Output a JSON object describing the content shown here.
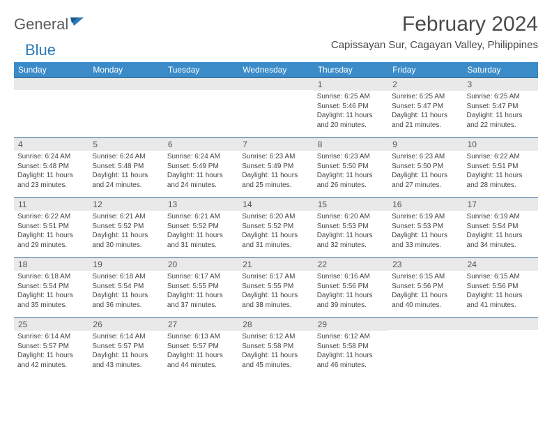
{
  "brand": {
    "text1": "General",
    "text2": "Blue"
  },
  "title": "February 2024",
  "location": "Capissayan Sur, Cagayan Valley, Philippines",
  "colors": {
    "header_bg": "#3b8bc9",
    "header_text": "#ffffff",
    "row_border": "#3b6a93",
    "daynum_bg": "#e9e9e9",
    "text": "#444444",
    "logo_gray": "#5a5a5a",
    "logo_blue": "#2a7ab8"
  },
  "day_names": [
    "Sunday",
    "Monday",
    "Tuesday",
    "Wednesday",
    "Thursday",
    "Friday",
    "Saturday"
  ],
  "weeks": [
    [
      {
        "n": "",
        "lines": []
      },
      {
        "n": "",
        "lines": []
      },
      {
        "n": "",
        "lines": []
      },
      {
        "n": "",
        "lines": []
      },
      {
        "n": "1",
        "lines": [
          "Sunrise: 6:25 AM",
          "Sunset: 5:46 PM",
          "Daylight: 11 hours and 20 minutes."
        ]
      },
      {
        "n": "2",
        "lines": [
          "Sunrise: 6:25 AM",
          "Sunset: 5:47 PM",
          "Daylight: 11 hours and 21 minutes."
        ]
      },
      {
        "n": "3",
        "lines": [
          "Sunrise: 6:25 AM",
          "Sunset: 5:47 PM",
          "Daylight: 11 hours and 22 minutes."
        ]
      }
    ],
    [
      {
        "n": "4",
        "lines": [
          "Sunrise: 6:24 AM",
          "Sunset: 5:48 PM",
          "Daylight: 11 hours and 23 minutes."
        ]
      },
      {
        "n": "5",
        "lines": [
          "Sunrise: 6:24 AM",
          "Sunset: 5:48 PM",
          "Daylight: 11 hours and 24 minutes."
        ]
      },
      {
        "n": "6",
        "lines": [
          "Sunrise: 6:24 AM",
          "Sunset: 5:49 PM",
          "Daylight: 11 hours and 24 minutes."
        ]
      },
      {
        "n": "7",
        "lines": [
          "Sunrise: 6:23 AM",
          "Sunset: 5:49 PM",
          "Daylight: 11 hours and 25 minutes."
        ]
      },
      {
        "n": "8",
        "lines": [
          "Sunrise: 6:23 AM",
          "Sunset: 5:50 PM",
          "Daylight: 11 hours and 26 minutes."
        ]
      },
      {
        "n": "9",
        "lines": [
          "Sunrise: 6:23 AM",
          "Sunset: 5:50 PM",
          "Daylight: 11 hours and 27 minutes."
        ]
      },
      {
        "n": "10",
        "lines": [
          "Sunrise: 6:22 AM",
          "Sunset: 5:51 PM",
          "Daylight: 11 hours and 28 minutes."
        ]
      }
    ],
    [
      {
        "n": "11",
        "lines": [
          "Sunrise: 6:22 AM",
          "Sunset: 5:51 PM",
          "Daylight: 11 hours and 29 minutes."
        ]
      },
      {
        "n": "12",
        "lines": [
          "Sunrise: 6:21 AM",
          "Sunset: 5:52 PM",
          "Daylight: 11 hours and 30 minutes."
        ]
      },
      {
        "n": "13",
        "lines": [
          "Sunrise: 6:21 AM",
          "Sunset: 5:52 PM",
          "Daylight: 11 hours and 31 minutes."
        ]
      },
      {
        "n": "14",
        "lines": [
          "Sunrise: 6:20 AM",
          "Sunset: 5:52 PM",
          "Daylight: 11 hours and 31 minutes."
        ]
      },
      {
        "n": "15",
        "lines": [
          "Sunrise: 6:20 AM",
          "Sunset: 5:53 PM",
          "Daylight: 11 hours and 32 minutes."
        ]
      },
      {
        "n": "16",
        "lines": [
          "Sunrise: 6:19 AM",
          "Sunset: 5:53 PM",
          "Daylight: 11 hours and 33 minutes."
        ]
      },
      {
        "n": "17",
        "lines": [
          "Sunrise: 6:19 AM",
          "Sunset: 5:54 PM",
          "Daylight: 11 hours and 34 minutes."
        ]
      }
    ],
    [
      {
        "n": "18",
        "lines": [
          "Sunrise: 6:18 AM",
          "Sunset: 5:54 PM",
          "Daylight: 11 hours and 35 minutes."
        ]
      },
      {
        "n": "19",
        "lines": [
          "Sunrise: 6:18 AM",
          "Sunset: 5:54 PM",
          "Daylight: 11 hours and 36 minutes."
        ]
      },
      {
        "n": "20",
        "lines": [
          "Sunrise: 6:17 AM",
          "Sunset: 5:55 PM",
          "Daylight: 11 hours and 37 minutes."
        ]
      },
      {
        "n": "21",
        "lines": [
          "Sunrise: 6:17 AM",
          "Sunset: 5:55 PM",
          "Daylight: 11 hours and 38 minutes."
        ]
      },
      {
        "n": "22",
        "lines": [
          "Sunrise: 6:16 AM",
          "Sunset: 5:56 PM",
          "Daylight: 11 hours and 39 minutes."
        ]
      },
      {
        "n": "23",
        "lines": [
          "Sunrise: 6:15 AM",
          "Sunset: 5:56 PM",
          "Daylight: 11 hours and 40 minutes."
        ]
      },
      {
        "n": "24",
        "lines": [
          "Sunrise: 6:15 AM",
          "Sunset: 5:56 PM",
          "Daylight: 11 hours and 41 minutes."
        ]
      }
    ],
    [
      {
        "n": "25",
        "lines": [
          "Sunrise: 6:14 AM",
          "Sunset: 5:57 PM",
          "Daylight: 11 hours and 42 minutes."
        ]
      },
      {
        "n": "26",
        "lines": [
          "Sunrise: 6:14 AM",
          "Sunset: 5:57 PM",
          "Daylight: 11 hours and 43 minutes."
        ]
      },
      {
        "n": "27",
        "lines": [
          "Sunrise: 6:13 AM",
          "Sunset: 5:57 PM",
          "Daylight: 11 hours and 44 minutes."
        ]
      },
      {
        "n": "28",
        "lines": [
          "Sunrise: 6:12 AM",
          "Sunset: 5:58 PM",
          "Daylight: 11 hours and 45 minutes."
        ]
      },
      {
        "n": "29",
        "lines": [
          "Sunrise: 6:12 AM",
          "Sunset: 5:58 PM",
          "Daylight: 11 hours and 46 minutes."
        ]
      },
      {
        "n": "",
        "lines": []
      },
      {
        "n": "",
        "lines": []
      }
    ]
  ]
}
